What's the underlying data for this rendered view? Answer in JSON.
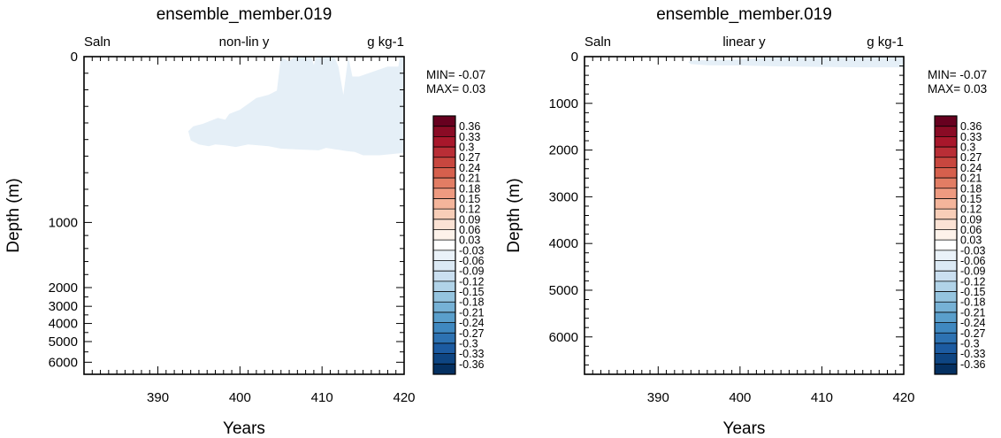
{
  "panel_ylabel": "Depth (m)",
  "panel_xlabel": "Years",
  "colorbar": {
    "labels": [
      "0.36",
      "0.33",
      "0.3",
      "0.27",
      "0.24",
      "0.21",
      "0.18",
      "0.15",
      "0.12",
      "0.09",
      "0.06",
      "0.03",
      "-0.03",
      "-0.06",
      "-0.09",
      "-0.12",
      "-0.15",
      "-0.18",
      "-0.21",
      "-0.24",
      "-0.27",
      "-0.3",
      "-0.33",
      "-0.36"
    ],
    "colors": [
      "#67001f",
      "#8a0b25",
      "#a8172b",
      "#b92e36",
      "#c8473f",
      "#d6604d",
      "#e27d64",
      "#ee9a80",
      "#f4b59b",
      "#f8ceb8",
      "#fbe2d4",
      "#fdf2ea",
      "#ffffff",
      "#eaf2f9",
      "#dbe9f4",
      "#cadff0",
      "#b1d3e8",
      "#95c4df",
      "#76b1d5",
      "#5a9fcc",
      "#3f88c0",
      "#2d72b2",
      "#1c5ba1",
      "#0e4582",
      "#053061"
    ]
  },
  "chart_data": [
    {
      "type": "area",
      "title": "ensemble_member.019",
      "left_label": "Saln",
      "center_label": "non-lin y",
      "right_label": "g kg-1",
      "xlabel": "Years",
      "ylabel": "Depth (m)",
      "min_label": "MIN= -0.07",
      "max_label": "MAX=  0.03",
      "xlim": [
        381,
        420
      ],
      "ylim": [
        0,
        6500
      ],
      "y_scale": "non-linear",
      "x_ticks": [
        "390",
        "400",
        "410",
        "420"
      ],
      "y_ticks": [
        "0",
        "1000",
        "2000",
        "3000",
        "4000",
        "5000",
        "6000"
      ],
      "shaded_band": "-0.03 to 0.03",
      "shaded_color": "#e5eff7",
      "region": {
        "top": [
          [
            405,
            0
          ],
          [
            405.5,
            15
          ],
          [
            406,
            30
          ],
          [
            406.6,
            0
          ],
          [
            408.7,
            0
          ],
          [
            409,
            50
          ],
          [
            409.3,
            0
          ],
          [
            411.5,
            0
          ],
          [
            412,
            60
          ],
          [
            412.6,
            230
          ],
          [
            413.2,
            0
          ],
          [
            413.7,
            120
          ],
          [
            414.5,
            120
          ],
          [
            418,
            60
          ],
          [
            419.3,
            60
          ],
          [
            419.5,
            0
          ],
          [
            420,
            0
          ]
        ],
        "bottom": [
          [
            420,
            580
          ],
          [
            417,
            595
          ],
          [
            415,
            595
          ],
          [
            414,
            575
          ],
          [
            413,
            570
          ],
          [
            410.5,
            550
          ],
          [
            409.6,
            565
          ],
          [
            407,
            560
          ],
          [
            405,
            555
          ],
          [
            403.5,
            540
          ],
          [
            401,
            530
          ],
          [
            399.5,
            545
          ],
          [
            398.2,
            535
          ],
          [
            397,
            530
          ],
          [
            396.2,
            540
          ],
          [
            395,
            530
          ],
          [
            394,
            505
          ],
          [
            393.7,
            450
          ],
          [
            394.3,
            420
          ],
          [
            395.5,
            405
          ],
          [
            397.3,
            370
          ],
          [
            398.2,
            380
          ],
          [
            398.7,
            345
          ],
          [
            400,
            320
          ],
          [
            402,
            250
          ],
          [
            403.5,
            230
          ],
          [
            404.5,
            205
          ],
          [
            405,
            0
          ]
        ]
      }
    },
    {
      "type": "area",
      "title": "ensemble_member.019",
      "left_label": "Saln",
      "center_label": "linear y",
      "right_label": "g kg-1",
      "xlabel": "Years",
      "ylabel": "Depth (m)",
      "min_label": "MIN= -0.07",
      "max_label": "MAX=  0.03",
      "xlim": [
        381,
        420
      ],
      "ylim": [
        0,
        6800
      ],
      "y_scale": "linear",
      "x_ticks": [
        "390",
        "400",
        "410",
        "420"
      ],
      "y_ticks": [
        "0",
        "1000",
        "2000",
        "3000",
        "4000",
        "5000",
        "6000"
      ],
      "shaded_band": "-0.03 to 0.03",
      "shaded_color": "#e5eff7",
      "region": {
        "top": [
          [
            394,
            80
          ],
          [
            400,
            60
          ],
          [
            405,
            0
          ],
          [
            420,
            0
          ]
        ],
        "bottom": [
          [
            420,
            230
          ],
          [
            415,
            230
          ],
          [
            410,
            220
          ],
          [
            405,
            210
          ],
          [
            400,
            190
          ],
          [
            396,
            185
          ],
          [
            394,
            160
          ],
          [
            393.7,
            120
          ]
        ]
      }
    }
  ]
}
